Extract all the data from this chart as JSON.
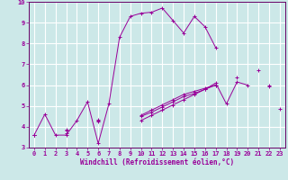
{
  "xlabel": "Windchill (Refroidissement éolien,°C)",
  "xlim": [
    -0.5,
    23.5
  ],
  "ylim": [
    3,
    10
  ],
  "xticks": [
    0,
    1,
    2,
    3,
    4,
    5,
    6,
    7,
    8,
    9,
    10,
    11,
    12,
    13,
    14,
    15,
    16,
    17,
    18,
    19,
    20,
    21,
    22,
    23
  ],
  "yticks": [
    3,
    4,
    5,
    6,
    7,
    8,
    9,
    10
  ],
  "bg_color": "#cce8e8",
  "plot_bg": "#cce8e8",
  "line_color": "#990099",
  "grid_color": "#ffffff",
  "spine_color": "#660066",
  "series": [
    [
      3.6,
      4.6,
      3.6,
      3.6,
      4.3,
      5.2,
      3.2,
      5.1,
      8.3,
      9.3,
      9.45,
      9.5,
      9.7,
      9.1,
      8.5,
      9.3,
      8.8,
      7.8,
      null,
      null,
      null,
      null,
      null,
      null
    ],
    [
      3.6,
      null,
      null,
      3.7,
      null,
      null,
      4.25,
      null,
      null,
      null,
      4.3,
      4.55,
      4.8,
      5.05,
      5.3,
      5.55,
      5.8,
      6.1,
      5.1,
      6.15,
      6.0,
      null,
      6.0,
      null
    ],
    [
      3.6,
      null,
      null,
      3.8,
      null,
      null,
      4.3,
      null,
      null,
      null,
      4.5,
      4.7,
      4.95,
      5.2,
      5.45,
      5.6,
      5.8,
      6.0,
      null,
      6.35,
      null,
      6.7,
      null,
      4.85
    ],
    [
      3.6,
      null,
      null,
      3.85,
      null,
      null,
      4.35,
      null,
      null,
      null,
      4.55,
      4.8,
      5.05,
      5.3,
      5.55,
      5.7,
      5.85,
      6.0,
      null,
      null,
      null,
      null,
      5.95,
      null
    ]
  ]
}
